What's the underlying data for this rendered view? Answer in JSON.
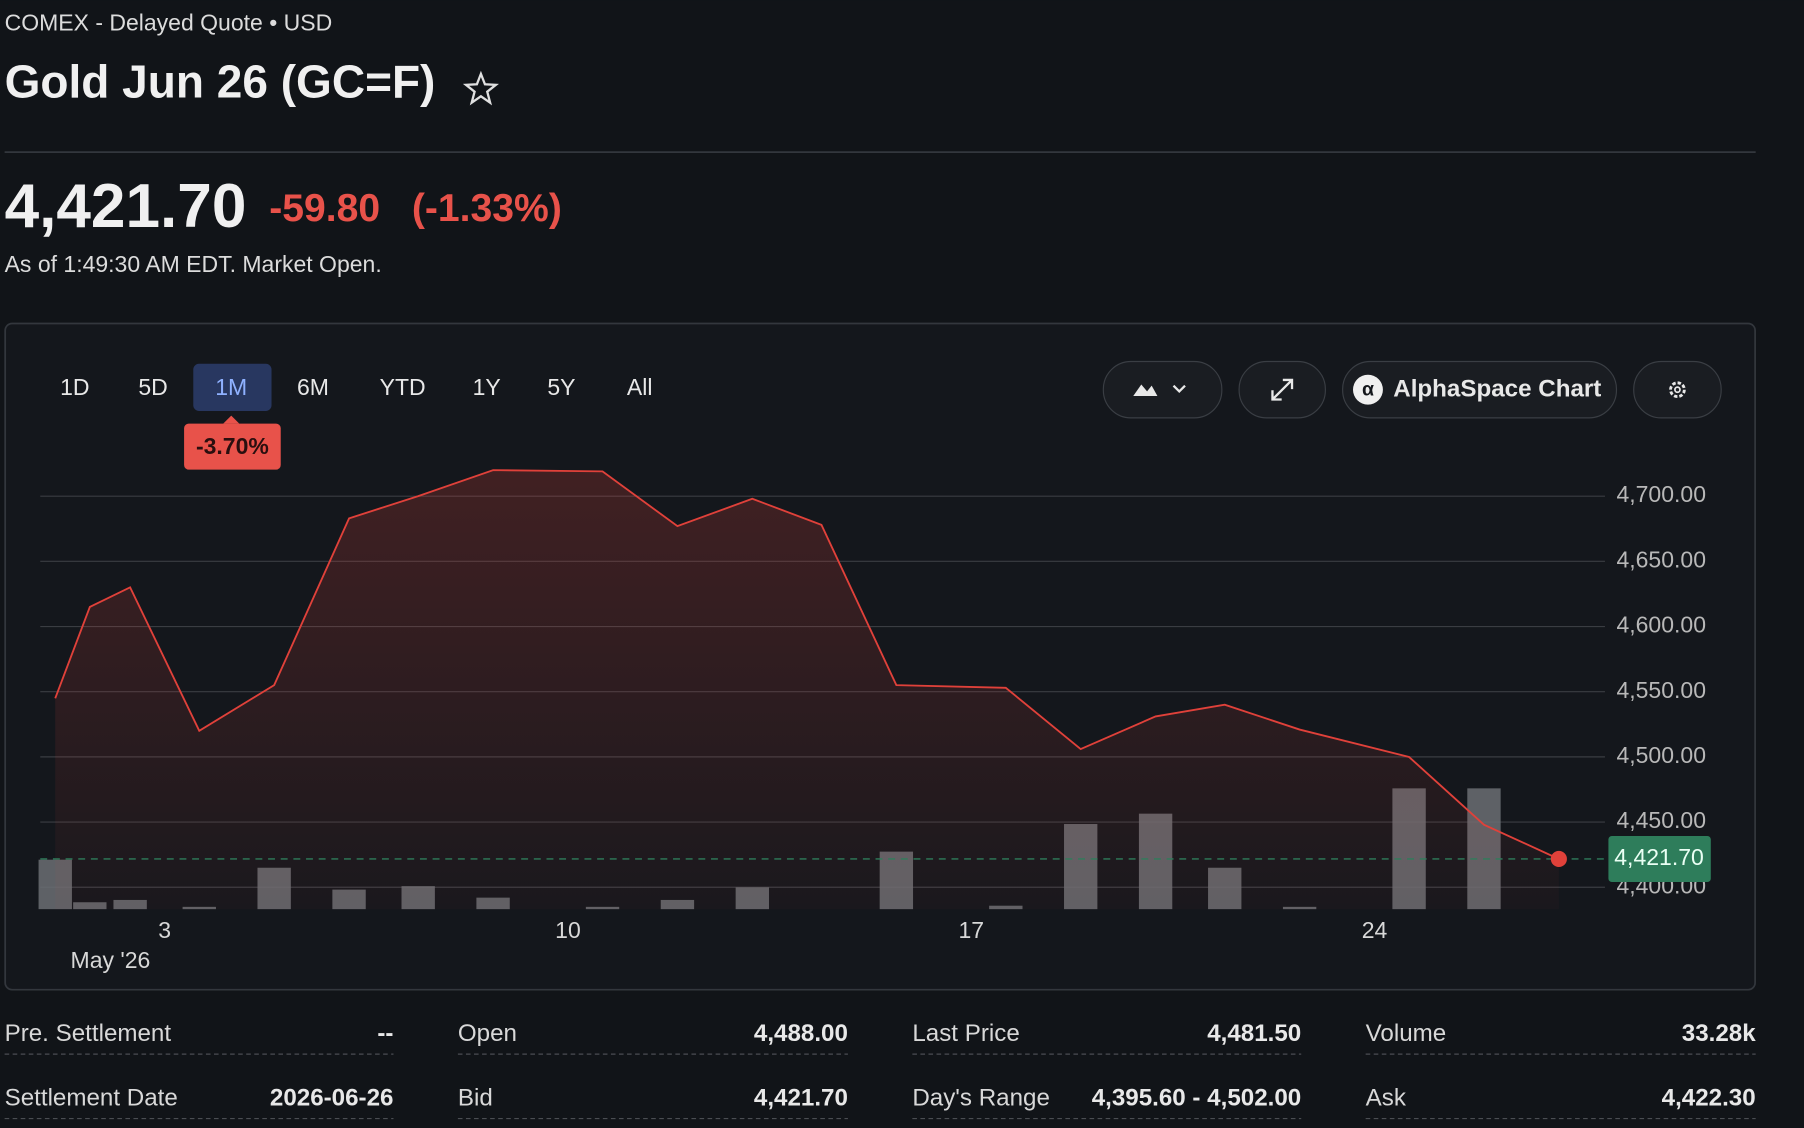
{
  "header": {
    "exchange": "COMEX - Delayed Quote • USD",
    "title": "Gold Jun 26 (GC=F)"
  },
  "quote": {
    "price": "4,421.70",
    "change": "-59.80",
    "change_percent": "(-1.33%)",
    "as_of": "As of 1:49:30 AM EDT. Market Open."
  },
  "ranges": [
    "1D",
    "5D",
    "1M",
    "6M",
    "YTD",
    "1Y",
    "5Y",
    "All"
  ],
  "selected_range": 2,
  "range_change": "-3.70%",
  "toolbar": {
    "alphaspace": "AlphaSpace Chart"
  },
  "chart_data": {
    "type": "line",
    "x": [
      1.1,
      1.7,
      2.4,
      3.6,
      4.9,
      6.2,
      7.4,
      8.7,
      10.6,
      11.9,
      13.2,
      14.4,
      15.7,
      17.6,
      18.9,
      20.2,
      21.4,
      22.7,
      24.6,
      25.9,
      27.2
    ],
    "values": [
      4545,
      4615,
      4630,
      4520,
      4555,
      4683,
      4700,
      4720,
      4719,
      4677,
      4698,
      4678,
      4555,
      4553,
      4506,
      4531,
      4540,
      4521,
      4500,
      4448,
      4421.7
    ],
    "color": "#e0413a",
    "volume": [
      129,
      18,
      24,
      6,
      108,
      51,
      60,
      30,
      6,
      24,
      57,
      null,
      150,
      9,
      222,
      249,
      108,
      6,
      315,
      315,
      null
    ],
    "volume_color": "#6b6e73",
    "xlim": [
      0.84,
      28
    ],
    "xticks": [
      3,
      10,
      17,
      24
    ],
    "x_period_label": "May '26",
    "ylim": [
      4383.2,
      4731.8
    ],
    "yticks": [
      {
        "value": 4400,
        "label": "4,400.00"
      },
      {
        "value": 4450,
        "label": "4,450.00"
      },
      {
        "value": 4500,
        "label": "4,500.00"
      },
      {
        "value": 4550,
        "label": "4,550.00"
      },
      {
        "value": 4600,
        "label": "4,600.00"
      },
      {
        "value": 4650,
        "label": "4,650.00"
      },
      {
        "value": 4700,
        "label": "4,700.00"
      }
    ],
    "grid": true,
    "last_value": 4421.7,
    "last_value_label": "4,421.70",
    "last_value_color": "#2e7d5b"
  },
  "stats": [
    [
      [
        "Pre. Settlement",
        "--"
      ],
      [
        "Open",
        "4,488.00"
      ],
      [
        "Last Price",
        "4,481.50"
      ],
      [
        "Volume",
        "33.28k"
      ]
    ],
    [
      [
        "Settlement Date",
        "2026-06-26"
      ],
      [
        "Bid",
        "4,421.70"
      ],
      [
        "Day's Range",
        "4,395.60 - 4,502.00"
      ],
      [
        "Ask",
        "4,422.30"
      ]
    ]
  ]
}
